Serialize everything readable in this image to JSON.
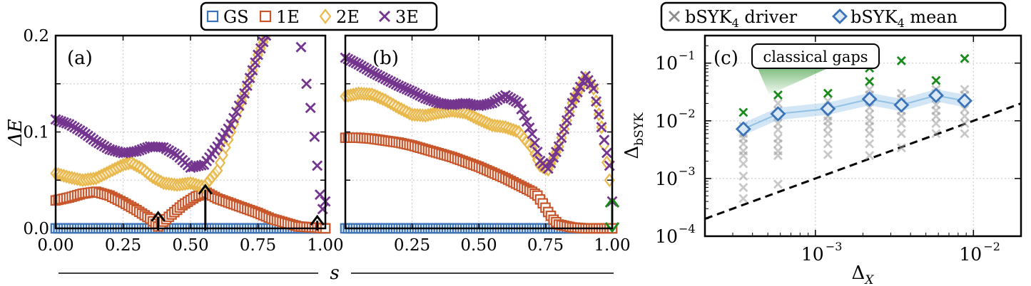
{
  "chart_data": [
    {
      "panel": "a",
      "type": "scatter",
      "panel_label": "(a)",
      "xlim": [
        0,
        1
      ],
      "ylim": [
        0,
        0.2
      ],
      "xticks": [
        0,
        0.25,
        0.5,
        0.75,
        1.0
      ],
      "xtick_labels": [
        "0.00",
        "0.25",
        "0.50",
        "0.75",
        "1.00"
      ],
      "yticks": [
        0,
        0.1,
        0.2
      ],
      "ytick_labels": [
        "0.0",
        "0.1",
        "0.2"
      ],
      "ylabel": "ΔE",
      "series": [
        {
          "name": "GS",
          "color": "#3b73b9",
          "marker": "square",
          "x": [
            0,
            0.1,
            0.2,
            0.3,
            0.4,
            0.5,
            0.6,
            0.7,
            0.8,
            0.9,
            0.95,
            1.0
          ],
          "y": [
            0,
            0,
            0,
            0,
            0,
            0,
            0,
            0,
            0,
            0,
            0,
            0
          ]
        },
        {
          "name": "1E",
          "color": "#c8562a",
          "marker": "square",
          "x": [
            0,
            0.05,
            0.1,
            0.15,
            0.2,
            0.25,
            0.3,
            0.35,
            0.38,
            0.42,
            0.47,
            0.52,
            0.56,
            0.6,
            0.65,
            0.7,
            0.75,
            0.8,
            0.85,
            0.9,
            0.95,
            1.0
          ],
          "y": [
            0.029,
            0.032,
            0.036,
            0.038,
            0.034,
            0.027,
            0.019,
            0.01,
            0.002,
            0.012,
            0.024,
            0.033,
            0.037,
            0.031,
            0.026,
            0.021,
            0.016,
            0.01,
            0.006,
            0.002,
            0.001,
            0.0
          ]
        },
        {
          "name": "2E",
          "color": "#e8b84a",
          "marker": "diamond",
          "x": [
            0,
            0.05,
            0.1,
            0.15,
            0.2,
            0.25,
            0.28,
            0.32,
            0.36,
            0.4,
            0.45,
            0.5,
            0.55,
            0.6,
            0.65,
            0.7,
            0.75,
            0.78
          ],
          "y": [
            0.057,
            0.053,
            0.05,
            0.052,
            0.059,
            0.066,
            0.068,
            0.062,
            0.053,
            0.047,
            0.045,
            0.047,
            0.043,
            0.06,
            0.1,
            0.14,
            0.18,
            0.2
          ]
        },
        {
          "name": "3E",
          "color": "#74358f",
          "marker": "x",
          "x": [
            0,
            0.05,
            0.1,
            0.15,
            0.2,
            0.25,
            0.3,
            0.35,
            0.4,
            0.45,
            0.5,
            0.55,
            0.6,
            0.65,
            0.7,
            0.75,
            0.78,
            0.91,
            0.93,
            0.945,
            0.96,
            0.97,
            0.98,
            0.99,
            1.0
          ],
          "y": [
            0.113,
            0.108,
            0.1,
            0.09,
            0.082,
            0.078,
            0.08,
            0.085,
            0.084,
            0.076,
            0.063,
            0.066,
            0.085,
            0.108,
            0.14,
            0.18,
            0.2,
            0.188,
            0.15,
            0.125,
            0.095,
            0.065,
            0.035,
            0.02,
            0.028
          ]
        }
      ],
      "annotations": [
        {
          "type": "arrow",
          "x": 0.38,
          "y_from": 0,
          "y_to": 0.009,
          "color": "#000000"
        },
        {
          "type": "arrow",
          "x": 0.555,
          "y_from": 0,
          "y_to": 0.037,
          "color": "#000000"
        },
        {
          "type": "arrow",
          "x": 0.97,
          "y_from": 0,
          "y_to": 0.005,
          "color": "#000000"
        }
      ]
    },
    {
      "panel": "b",
      "type": "scatter",
      "panel_label": "(b)",
      "xlim": [
        0,
        1
      ],
      "ylim": [
        0,
        0.2
      ],
      "xticks": [
        0.25,
        0.5,
        0.75,
        1.0
      ],
      "xtick_labels": [
        "0.25",
        "0.50",
        "0.75",
        "1.00"
      ],
      "series": [
        {
          "name": "GS",
          "color": "#3b73b9",
          "marker": "square",
          "x": [
            0,
            0.1,
            0.2,
            0.3,
            0.4,
            0.5,
            0.6,
            0.7,
            0.8,
            0.9,
            1.0
          ],
          "y": [
            0,
            0,
            0,
            0,
            0,
            0,
            0,
            0,
            0,
            0,
            0
          ]
        },
        {
          "name": "1E",
          "color": "#c8562a",
          "marker": "square",
          "x": [
            0,
            0.05,
            0.1,
            0.15,
            0.2,
            0.25,
            0.3,
            0.35,
            0.4,
            0.45,
            0.5,
            0.55,
            0.6,
            0.65,
            0.7,
            0.72,
            0.74,
            0.76,
            0.78,
            0.8,
            0.85,
            0.9,
            0.95,
            1.0
          ],
          "y": [
            0.094,
            0.094,
            0.093,
            0.091,
            0.089,
            0.086,
            0.082,
            0.078,
            0.074,
            0.069,
            0.064,
            0.058,
            0.052,
            0.045,
            0.038,
            0.034,
            0.026,
            0.017,
            0.009,
            0.004,
            0.001,
            0.0,
            0.0,
            0.0
          ]
        },
        {
          "name": "2E",
          "color": "#e8b84a",
          "marker": "diamond",
          "x": [
            0,
            0.05,
            0.1,
            0.15,
            0.2,
            0.25,
            0.3,
            0.35,
            0.4,
            0.45,
            0.5,
            0.55,
            0.6,
            0.65,
            0.7,
            0.73,
            0.76,
            0.8,
            0.85,
            0.9,
            0.93,
            0.96,
            0.99
          ],
          "y": [
            0.137,
            0.14,
            0.139,
            0.133,
            0.125,
            0.118,
            0.117,
            0.12,
            0.122,
            0.12,
            0.113,
            0.107,
            0.105,
            0.1,
            0.083,
            0.065,
            0.061,
            0.085,
            0.13,
            0.156,
            0.145,
            0.105,
            0.05
          ]
        },
        {
          "name": "3E",
          "color": "#74358f",
          "marker": "x",
          "x": [
            0,
            0.05,
            0.1,
            0.15,
            0.2,
            0.25,
            0.3,
            0.35,
            0.4,
            0.45,
            0.5,
            0.55,
            0.6,
            0.65,
            0.7,
            0.73,
            0.76,
            0.8,
            0.85,
            0.9,
            0.93,
            0.96,
            0.99,
            1.0
          ],
          "y": [
            0.177,
            0.17,
            0.162,
            0.155,
            0.148,
            0.142,
            0.135,
            0.13,
            0.128,
            0.13,
            0.127,
            0.13,
            0.138,
            0.13,
            0.098,
            0.07,
            0.062,
            0.085,
            0.13,
            0.158,
            0.145,
            0.105,
            0.065,
            0.028
          ]
        }
      ],
      "annotations": [
        {
          "type": "double_arrow",
          "x": 1.0,
          "y_from": 0.0,
          "y_to": 0.025,
          "color": "#1a8a1a"
        }
      ]
    },
    {
      "panel": "c",
      "type": "scatter",
      "panel_label": "(c)",
      "xscale": "log",
      "yscale": "log",
      "xlim": [
        0.0002,
        0.02
      ],
      "ylim": [
        0.0001,
        0.3
      ],
      "xlabel": "Δ",
      "xlabel_sub": "X",
      "ylabel": "Δ",
      "ylabel_sub": "bSYK",
      "xtick_labels": [
        "10",
        "10"
      ],
      "xtick_exps": [
        "−3",
        "−2"
      ],
      "ytick_labels": [
        "10",
        "10",
        "10",
        "10"
      ],
      "ytick_exps": [
        "−4",
        "−3",
        "−2",
        "−1"
      ],
      "series": [
        {
          "name": "bSYK4 driver",
          "color": "#9a9a9a",
          "marker": "x",
          "x": [
            0.00035,
            0.00035,
            0.00035,
            0.00035,
            0.00035,
            0.00035,
            0.00035,
            0.00035,
            0.00035,
            0.00035,
            0.00058,
            0.00058,
            0.00058,
            0.00058,
            0.00058,
            0.00058,
            0.00058,
            0.00058,
            0.00058,
            0.00058,
            0.0012,
            0.0012,
            0.0012,
            0.0012,
            0.0012,
            0.0012,
            0.0012,
            0.0012,
            0.0022,
            0.0022,
            0.0022,
            0.0022,
            0.0022,
            0.0022,
            0.0022,
            0.0022,
            0.0022,
            0.0022,
            0.0035,
            0.0035,
            0.0035,
            0.0035,
            0.0035,
            0.0035,
            0.0035,
            0.0035,
            0.0058,
            0.0058,
            0.0058,
            0.0058,
            0.0058,
            0.0058,
            0.0058,
            0.0058,
            0.0088,
            0.0088,
            0.0088,
            0.0088,
            0.0088,
            0.0088,
            0.0088
          ],
          "y": [
            0.008,
            0.006,
            0.005,
            0.004,
            0.003,
            0.0025,
            0.0018,
            0.0011,
            0.0007,
            0.00045,
            0.02,
            0.015,
            0.012,
            0.009,
            0.007,
            0.005,
            0.004,
            0.003,
            0.0025,
            0.0008,
            0.022,
            0.016,
            0.012,
            0.01,
            0.008,
            0.006,
            0.004,
            0.0026,
            0.035,
            0.028,
            0.022,
            0.017,
            0.013,
            0.01,
            0.008,
            0.006,
            0.004,
            0.0025,
            0.03,
            0.024,
            0.02,
            0.015,
            0.012,
            0.009,
            0.006,
            0.0034,
            0.035,
            0.03,
            0.025,
            0.019,
            0.015,
            0.012,
            0.009,
            0.006,
            0.035,
            0.028,
            0.022,
            0.016,
            0.012,
            0.009,
            0.006
          ]
        },
        {
          "name": "bSYK4 mean",
          "color": "#3b73b9",
          "marker": "diamond",
          "x": [
            0.00035,
            0.00058,
            0.0012,
            0.0022,
            0.0035,
            0.0058,
            0.0088
          ],
          "y": [
            0.0072,
            0.0132,
            0.0162,
            0.0238,
            0.0188,
            0.0275,
            0.0222
          ]
        },
        {
          "name": "classical gaps",
          "color": "#1a8a1a",
          "marker": "x",
          "x": [
            0.00035,
            0.00058,
            0.0012,
            0.0022,
            0.0022,
            0.0035,
            0.0058,
            0.0088
          ],
          "y": [
            0.014,
            0.028,
            0.03,
            0.082,
            0.048,
            0.11,
            0.05,
            0.12
          ]
        },
        {
          "name": "reference line",
          "type": "line",
          "dashed": true,
          "color": "#000000",
          "x": [
            0.0002,
            0.02
          ],
          "y": [
            0.0002,
            0.02
          ]
        }
      ],
      "annotations": [
        {
          "type": "label_box",
          "text": "classical gaps"
        }
      ]
    }
  ],
  "legend_top_left": {
    "items": [
      {
        "label": "GS",
        "color": "#3b73b9",
        "marker": "square"
      },
      {
        "label": "1E",
        "color": "#c8562a",
        "marker": "square"
      },
      {
        "label": "2E",
        "color": "#e8b84a",
        "marker": "diamond"
      },
      {
        "label": "3E",
        "color": "#74358f",
        "marker": "x"
      }
    ]
  },
  "legend_top_right": {
    "items": [
      {
        "label": "bSYK",
        "sub": "4",
        "suffix": " driver",
        "color": "#8c8c8c",
        "marker": "x"
      },
      {
        "label": "bSYK",
        "sub": "4",
        "suffix": " mean",
        "color": "#3b73b9",
        "marker": "diamond"
      }
    ]
  },
  "shared_xlabel": "s"
}
